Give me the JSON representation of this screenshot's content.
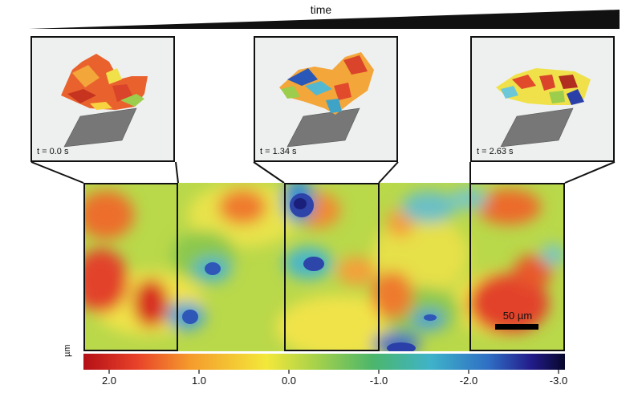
{
  "header": {
    "time_label": "time"
  },
  "snapshots": [
    {
      "time": "t = 0.0 s"
    },
    {
      "time": "t = 1.34 s"
    },
    {
      "time": "t = 2.63 s"
    }
  ],
  "scale_bar": {
    "label": "50 µm"
  },
  "colorbar": {
    "unit": "µm",
    "ticks": [
      "2.0",
      "1.0",
      "0.0",
      "-1.0",
      "-2.0",
      "-3.0"
    ],
    "colors": [
      "#b40f16",
      "#e8412a",
      "#f59a2c",
      "#f3e83a",
      "#a8d24a",
      "#4cb66a",
      "#3fb3c9",
      "#2f6fc4",
      "#221c8a",
      "#07062a"
    ]
  }
}
